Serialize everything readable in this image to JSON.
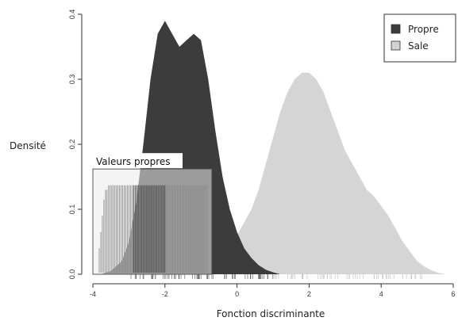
{
  "chart_data": {
    "type": "area",
    "title": "",
    "xlabel": "Fonction discriminante",
    "ylabel": "Densité",
    "xlim": [
      -4,
      6
    ],
    "ylim": [
      0,
      0.4
    ],
    "x_ticks": [
      -4,
      -2,
      0,
      2,
      4,
      6
    ],
    "y_ticks": [
      0.0,
      0.1,
      0.2,
      0.3,
      0.4
    ],
    "x_tick_labels": [
      "-4",
      "-2",
      "0",
      "2",
      "4",
      "6"
    ],
    "y_tick_labels": [
      "0.0",
      "0.1",
      "0.2",
      "0.3",
      "0.4"
    ],
    "legend_position": "top-right",
    "series": [
      {
        "name": "Propre",
        "color": "#3c3c3c",
        "x": [
          -3.8,
          -3.5,
          -3.2,
          -3.0,
          -2.8,
          -2.6,
          -2.4,
          -2.2,
          -2.0,
          -1.8,
          -1.6,
          -1.4,
          -1.2,
          -1.0,
          -0.8,
          -0.6,
          -0.4,
          -0.2,
          0.0,
          0.2,
          0.4,
          0.6,
          0.8,
          1.0,
          1.2
        ],
        "y": [
          0.0,
          0.005,
          0.02,
          0.05,
          0.11,
          0.2,
          0.3,
          0.37,
          0.39,
          0.37,
          0.35,
          0.36,
          0.37,
          0.36,
          0.3,
          0.22,
          0.15,
          0.1,
          0.065,
          0.04,
          0.025,
          0.014,
          0.007,
          0.003,
          0.0
        ]
      },
      {
        "name": "Sale",
        "color": "#d3d3d3",
        "x": [
          -1.2,
          -1.0,
          -0.8,
          -0.6,
          -0.4,
          -0.2,
          0.0,
          0.2,
          0.4,
          0.6,
          0.8,
          1.0,
          1.2,
          1.4,
          1.6,
          1.8,
          2.0,
          2.2,
          2.4,
          2.6,
          2.8,
          3.0,
          3.2,
          3.4,
          3.6,
          3.8,
          4.0,
          4.2,
          4.4,
          4.6,
          4.8,
          5.0,
          5.2,
          5.4,
          5.6,
          5.8
        ],
        "y": [
          0.0,
          0.004,
          0.008,
          0.015,
          0.025,
          0.04,
          0.06,
          0.08,
          0.1,
          0.13,
          0.17,
          0.21,
          0.25,
          0.28,
          0.3,
          0.31,
          0.31,
          0.3,
          0.28,
          0.25,
          0.22,
          0.19,
          0.17,
          0.15,
          0.13,
          0.12,
          0.105,
          0.09,
          0.07,
          0.05,
          0.035,
          0.02,
          0.012,
          0.006,
          0.002,
          0.0
        ]
      }
    ],
    "inset": {
      "title": "Valeurs propres",
      "x_range": [
        -4,
        -0.7
      ],
      "y_range": [
        0,
        0.162
      ]
    }
  }
}
